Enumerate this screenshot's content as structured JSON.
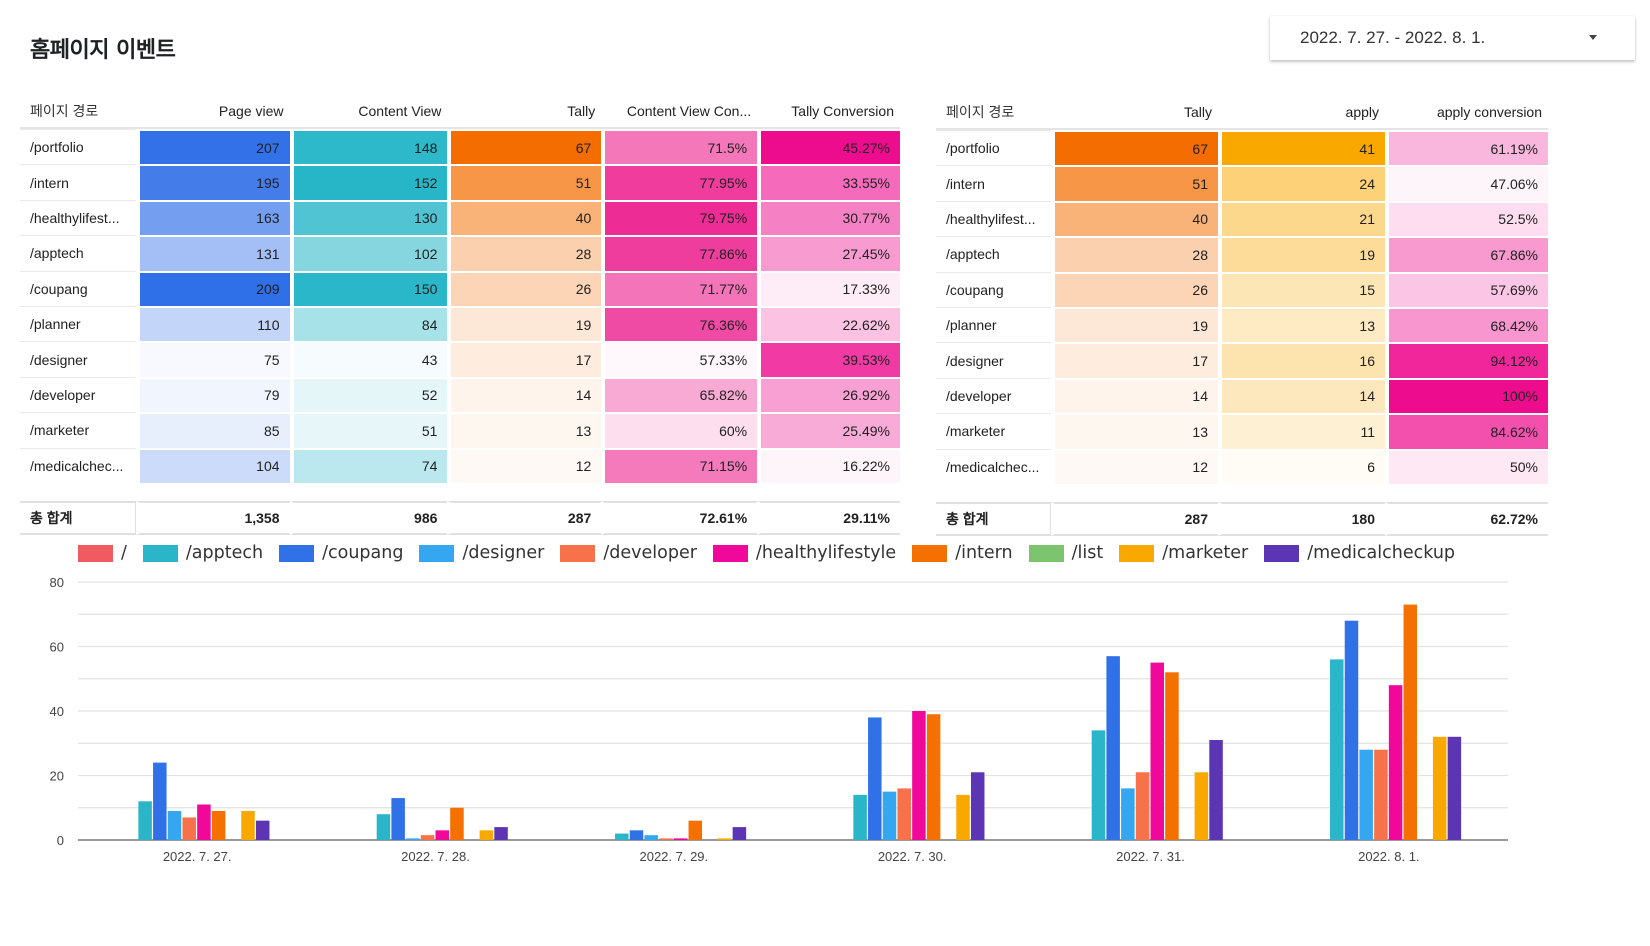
{
  "page": {
    "title": "홈페이지 이벤트"
  },
  "date_range": {
    "value": "2022. 7. 27. - 2022. 8. 1.",
    "icon": "caret-down-icon"
  },
  "table1": {
    "headers": [
      "페이지 경로",
      "Page view",
      "Content View",
      "Tally",
      "Content View Con...",
      "Tally Conversion"
    ],
    "rows": [
      [
        "/portfolio",
        "207",
        "148",
        "67",
        "71.5%",
        "45.27%"
      ],
      [
        "/intern",
        "195",
        "152",
        "51",
        "77.95%",
        "33.55%"
      ],
      [
        "/healthylifest...",
        "163",
        "130",
        "40",
        "79.75%",
        "30.77%"
      ],
      [
        "/apptech",
        "131",
        "102",
        "28",
        "77.86%",
        "27.45%"
      ],
      [
        "/coupang",
        "209",
        "150",
        "26",
        "71.77%",
        "17.33%"
      ],
      [
        "/planner",
        "110",
        "84",
        "19",
        "76.36%",
        "22.62%"
      ],
      [
        "/designer",
        "75",
        "43",
        "17",
        "57.33%",
        "39.53%"
      ],
      [
        "/developer",
        "79",
        "52",
        "14",
        "65.82%",
        "26.92%"
      ],
      [
        "/marketer",
        "85",
        "51",
        "13",
        "60%",
        "25.49%"
      ],
      [
        "/medicalchec...",
        "104",
        "74",
        "12",
        "71.15%",
        "16.22%"
      ]
    ],
    "total": [
      "총 합계",
      "1,358",
      "986",
      "287",
      "72.61%",
      "29.11%"
    ],
    "heat_colors": [
      "#2f6fe8",
      "#26b6c8",
      "#f46d00",
      "#ee2c95",
      "#ee0c8e"
    ]
  },
  "table2": {
    "headers": [
      "페이지 경로",
      "Tally",
      "apply",
      "apply conversion"
    ],
    "rows": [
      [
        "/portfolio",
        "67",
        "41",
        "61.19%"
      ],
      [
        "/intern",
        "51",
        "24",
        "47.06%"
      ],
      [
        "/healthylifest...",
        "40",
        "21",
        "52.5%"
      ],
      [
        "/apptech",
        "28",
        "19",
        "67.86%"
      ],
      [
        "/coupang",
        "26",
        "15",
        "57.69%"
      ],
      [
        "/planner",
        "19",
        "13",
        "68.42%"
      ],
      [
        "/designer",
        "17",
        "16",
        "94.12%"
      ],
      [
        "/developer",
        "14",
        "14",
        "100%"
      ],
      [
        "/marketer",
        "13",
        "11",
        "84.62%"
      ],
      [
        "/medicalchec...",
        "12",
        "6",
        "50%"
      ]
    ],
    "total": [
      "총 합계",
      "287",
      "180",
      "62.72%"
    ],
    "heat_colors": [
      "#f46d00",
      "#f9a800",
      "#ee0c8e"
    ]
  },
  "chart_data": {
    "type": "bar",
    "title": "",
    "xlabel": "",
    "ylabel": "",
    "ylim": [
      0,
      80
    ],
    "yticks": [
      0,
      20,
      40,
      60,
      80
    ],
    "grid": true,
    "legend_position": "top",
    "categories": [
      "2022. 7. 27.",
      "2022. 7. 28.",
      "2022. 7. 29.",
      "2022. 7. 30.",
      "2022. 7. 31.",
      "2022. 8. 1."
    ],
    "series": [
      {
        "name": "/",
        "color": "#f05a61",
        "values": [
          0,
          0,
          0,
          0,
          0,
          0
        ]
      },
      {
        "name": "/apptech",
        "color": "#2bb5c9",
        "values": [
          12,
          8,
          2,
          14,
          34,
          56
        ]
      },
      {
        "name": "/coupang",
        "color": "#3071e8",
        "values": [
          24,
          13,
          3,
          38,
          57,
          68
        ]
      },
      {
        "name": "/designer",
        "color": "#34a7f0",
        "values": [
          9,
          0.5,
          1.5,
          15,
          16,
          28
        ]
      },
      {
        "name": "/developer",
        "color": "#f7714a",
        "values": [
          7,
          1.5,
          0.5,
          16,
          21,
          28
        ]
      },
      {
        "name": "/healthylifestyle",
        "color": "#f0089a",
        "values": [
          11,
          3,
          0.5,
          40,
          55,
          48
        ]
      },
      {
        "name": "/intern",
        "color": "#f47000",
        "values": [
          9,
          10,
          6,
          39,
          52,
          73
        ]
      },
      {
        "name": "/list",
        "color": "#7cc46e",
        "values": [
          0,
          0,
          0,
          0,
          0,
          0
        ]
      },
      {
        "name": "/marketer",
        "color": "#f9a800",
        "values": [
          9,
          3,
          0.5,
          14,
          21,
          32
        ]
      },
      {
        "name": "/medicalcheckup",
        "color": "#5c35b5",
        "values": [
          6,
          4,
          4,
          21,
          31,
          32
        ]
      }
    ]
  }
}
